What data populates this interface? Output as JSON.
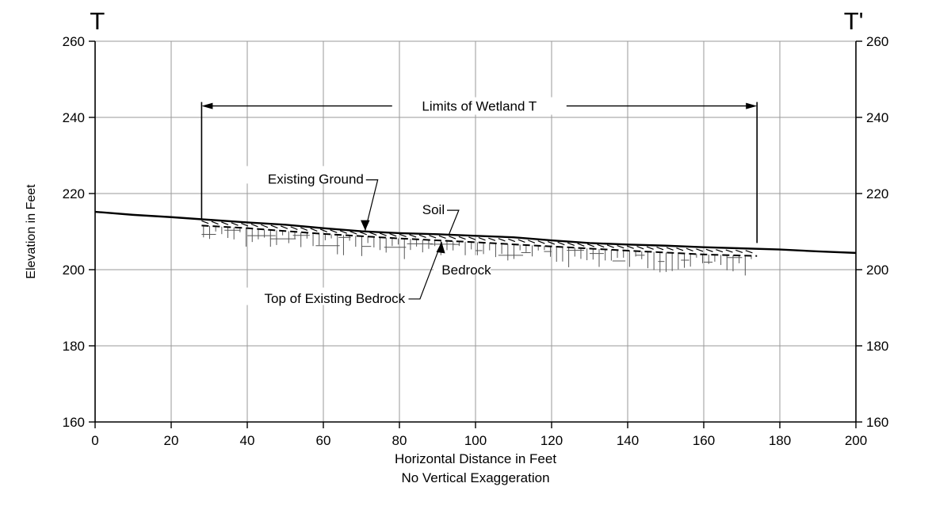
{
  "chart_data": {
    "type": "line",
    "section_start_label": "T",
    "section_end_label": "T'",
    "xlabel": "Horizontal Distance in Feet",
    "subtitle": "No Vertical Exaggeration",
    "ylabel": "Elevation in Feet",
    "xlim": [
      0,
      200
    ],
    "ylim": [
      160,
      260
    ],
    "x_ticks": [
      0,
      20,
      40,
      60,
      80,
      100,
      120,
      140,
      160,
      180,
      200
    ],
    "y_ticks": [
      160,
      180,
      200,
      220,
      240,
      260
    ],
    "grid": true,
    "series": [
      {
        "name": "Existing Ground",
        "x": [
          0,
          10,
          20,
          30,
          40,
          50,
          60,
          70,
          80,
          90,
          100,
          110,
          120,
          130,
          140,
          150,
          160,
          170,
          180,
          190,
          200
        ],
        "y": [
          215.2,
          214.4,
          213.8,
          213.1,
          212.4,
          211.8,
          210.9,
          210.1,
          209.6,
          209.3,
          208.9,
          208.5,
          207.7,
          207.0,
          206.6,
          206.3,
          205.9,
          205.6,
          205.3,
          204.8,
          204.4
        ]
      },
      {
        "name": "Top of Existing Bedrock",
        "x": [
          28,
          40,
          60,
          80,
          100,
          120,
          140,
          160,
          174
        ],
        "y": [
          211.6,
          210.9,
          209.4,
          208.2,
          207.2,
          206.1,
          205.0,
          204.0,
          203.6
        ]
      }
    ],
    "annotations": {
      "wetland_limits": {
        "label": "Limits of Wetland T",
        "x_start": 28,
        "x_end": 174,
        "y": 243
      },
      "existing_ground": "Existing Ground",
      "soil": "Soil",
      "bedrock": "Bedrock",
      "top_of_bedrock": "Top of Existing Bedrock"
    }
  }
}
